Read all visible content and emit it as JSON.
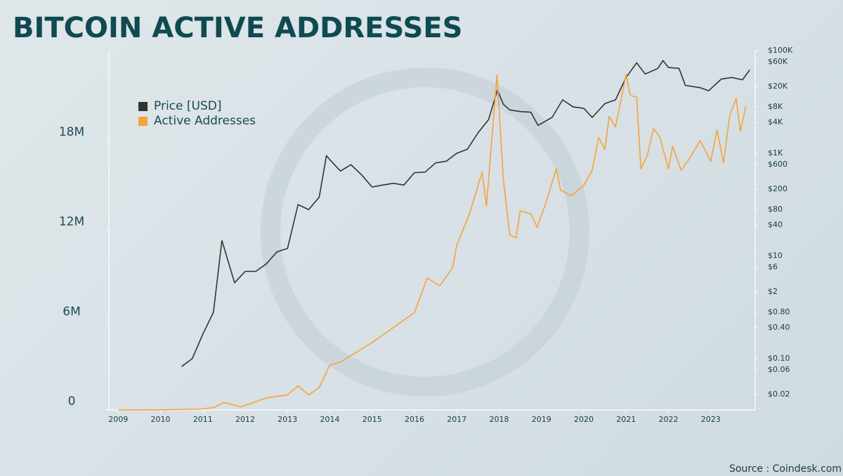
{
  "chart_data": {
    "type": "line",
    "title": "BITCOIN ACTIVE ADDRESSES",
    "source": "Source : Coindesk.com",
    "xlim": [
      2008.78,
      2024.05
    ],
    "xticks": [
      2009,
      2010,
      2011,
      2012,
      2013,
      2014,
      2015,
      2016,
      2017,
      2018,
      2019,
      2020,
      2021,
      2022,
      2023
    ],
    "ylim": [
      0,
      24000000
    ],
    "yticks": [
      {
        "value": 0,
        "label": "0"
      },
      {
        "value": 6000000,
        "label": "6M"
      },
      {
        "value": 12000000,
        "label": "12M"
      },
      {
        "value": 18000000,
        "label": "18M"
      }
    ],
    "y2lim": [
      0.01,
      100000
    ],
    "y2scale": "log",
    "y2ticks": [
      {
        "value": 100000,
        "label": "$100K"
      },
      {
        "value": 60000,
        "label": "$60K"
      },
      {
        "value": 20000,
        "label": "$20K"
      },
      {
        "value": 8000,
        "label": "$8K"
      },
      {
        "value": 4000,
        "label": "$4K"
      },
      {
        "value": 1000,
        "label": "$1K"
      },
      {
        "value": 600,
        "label": "$600"
      },
      {
        "value": 200,
        "label": "$200"
      },
      {
        "value": 80,
        "label": "$80"
      },
      {
        "value": 40,
        "label": "$40"
      },
      {
        "value": 10,
        "label": "$10"
      },
      {
        "value": 6,
        "label": "$6"
      },
      {
        "value": 2,
        "label": "$2"
      },
      {
        "value": 0.8,
        "label": "$0.80"
      },
      {
        "value": 0.4,
        "label": "$0.40"
      },
      {
        "value": 0.1,
        "label": "$0.10"
      },
      {
        "value": 0.06,
        "label": "$0.06"
      },
      {
        "value": 0.02,
        "label": "$0.02"
      }
    ],
    "legend": "upper left",
    "series": [
      {
        "name": "Price [USD]",
        "color": "#333333",
        "axis": "y2",
        "x": [
          2010.5,
          2010.75,
          2011.0,
          2011.25,
          2011.45,
          2011.75,
          2012.0,
          2012.25,
          2012.5,
          2012.75,
          2013.0,
          2013.25,
          2013.5,
          2013.75,
          2013.92,
          2014.0,
          2014.25,
          2014.5,
          2014.75,
          2015.0,
          2015.25,
          2015.5,
          2015.75,
          2016.0,
          2016.25,
          2016.5,
          2016.75,
          2017.0,
          2017.25,
          2017.5,
          2017.75,
          2017.96,
          2018.1,
          2018.25,
          2018.5,
          2018.75,
          2018.92,
          2019.25,
          2019.5,
          2019.75,
          2020.0,
          2020.2,
          2020.5,
          2020.75,
          2021.0,
          2021.25,
          2021.45,
          2021.75,
          2021.87,
          2022.0,
          2022.25,
          2022.4,
          2022.75,
          2022.95,
          2023.25,
          2023.5,
          2023.75,
          2023.92
        ],
        "values": [
          0.07,
          0.1,
          0.3,
          0.8,
          20,
          3,
          5,
          5,
          7,
          12,
          14,
          100,
          80,
          140,
          900,
          750,
          450,
          600,
          380,
          220,
          240,
          260,
          240,
          420,
          430,
          650,
          700,
          1000,
          1200,
          2500,
          4500,
          17000,
          9000,
          7000,
          6500,
          6300,
          3500,
          5000,
          11000,
          8000,
          7500,
          5000,
          9300,
          11000,
          30000,
          58000,
          35000,
          45000,
          64000,
          47000,
          45000,
          21000,
          19000,
          16500,
          28000,
          30000,
          27000,
          42000
        ]
      },
      {
        "name": "Active Addresses",
        "color": "#f7a23b",
        "x": [
          2009.0,
          2010.0,
          2010.9,
          2011.25,
          2011.5,
          2011.9,
          2012.5,
          2013.0,
          2013.25,
          2013.5,
          2013.75,
          2014.0,
          2014.25,
          2014.6,
          2015.0,
          2015.5,
          2016.0,
          2016.3,
          2016.6,
          2016.9,
          2017.0,
          2017.3,
          2017.6,
          2017.7,
          2017.95,
          2018.1,
          2018.25,
          2018.4,
          2018.5,
          2018.75,
          2018.9,
          2019.1,
          2019.35,
          2019.45,
          2019.7,
          2020.0,
          2020.2,
          2020.35,
          2020.5,
          2020.6,
          2020.75,
          2021.0,
          2021.1,
          2021.25,
          2021.35,
          2021.5,
          2021.65,
          2021.8,
          2022.0,
          2022.1,
          2022.3,
          2022.5,
          2022.75,
          2023.0,
          2023.15,
          2023.3,
          2023.45,
          2023.6,
          2023.7,
          2023.83
        ],
        "values": [
          0,
          10000,
          50000,
          150000,
          500000,
          200000,
          800000,
          1000000,
          1600000,
          1000000,
          1500000,
          3000000,
          3200000,
          3800000,
          4500000,
          5500000,
          6500000,
          8800000,
          8300000,
          9500000,
          11000000,
          13100000,
          15900000,
          13600000,
          22400000,
          15400000,
          11700000,
          11500000,
          13300000,
          13100000,
          12200000,
          13800000,
          16100000,
          14700000,
          14300000,
          15000000,
          16000000,
          18200000,
          17400000,
          19600000,
          18900000,
          22400000,
          21000000,
          20900000,
          16100000,
          17000000,
          18800000,
          18200000,
          16100000,
          17600000,
          16000000,
          16800000,
          18000000,
          16600000,
          18700000,
          16500000,
          19700000,
          20800000,
          18600000,
          20300000
        ]
      }
    ]
  }
}
